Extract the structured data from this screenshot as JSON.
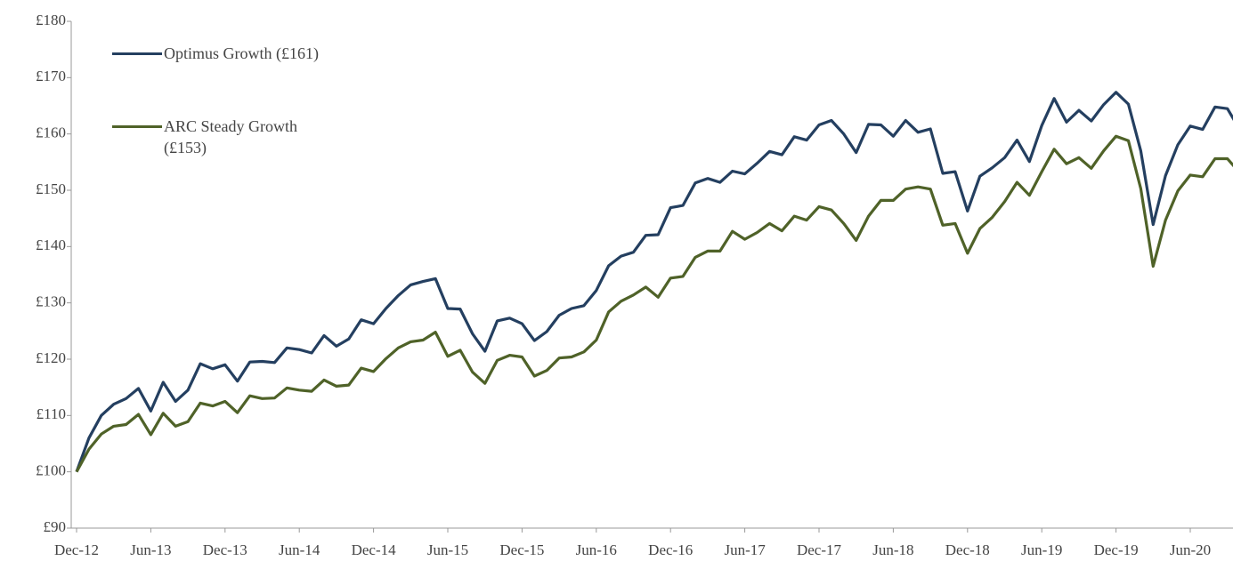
{
  "chart_data": {
    "type": "line",
    "categories": [
      "Dec-12",
      null,
      null,
      null,
      null,
      null,
      "Jun-13",
      null,
      null,
      null,
      null,
      null,
      "Dec-13",
      null,
      null,
      null,
      null,
      null,
      "Jun-14",
      null,
      null,
      null,
      null,
      null,
      "Dec-14",
      null,
      null,
      null,
      null,
      null,
      "Jun-15",
      null,
      null,
      null,
      null,
      null,
      "Dec-15",
      null,
      null,
      null,
      null,
      null,
      "Jun-16",
      null,
      null,
      null,
      null,
      null,
      "Dec-16",
      null,
      null,
      null,
      null,
      null,
      "Jun-17",
      null,
      null,
      null,
      null,
      null,
      "Dec-17",
      null,
      null,
      null,
      null,
      null,
      "Jun-18",
      null,
      null,
      null,
      null,
      null,
      "Dec-18",
      null,
      null,
      null,
      null,
      null,
      "Jun-19",
      null,
      null,
      null,
      null,
      null,
      "Dec-19",
      null,
      null,
      null,
      null,
      null,
      "Jun-20",
      null,
      null,
      null,
      null
    ],
    "series": [
      {
        "name": "Optimus Growth (£161)",
        "color": "#243f60",
        "values": [
          100,
          106,
          110,
          112,
          113,
          114.8,
          110.8,
          115.9,
          112.5,
          114.5,
          119.2,
          118.3,
          119,
          116.1,
          119.5,
          119.6,
          119.4,
          122,
          121.7,
          121.1,
          124.2,
          122.3,
          123.6,
          127,
          126.3,
          129,
          131.3,
          133.2,
          133.8,
          134.3,
          129,
          128.9,
          124.5,
          121.4,
          126.8,
          127.3,
          126.3,
          123.3,
          124.9,
          127.8,
          129,
          129.5,
          132.2,
          136.6,
          138.3,
          139,
          142,
          142.1,
          146.9,
          147.3,
          151.3,
          152.1,
          151.4,
          153.4,
          152.9,
          154.8,
          156.9,
          156.3,
          159.5,
          158.9,
          161.6,
          162.4,
          160,
          156.7,
          161.7,
          161.6,
          159.6,
          162.4,
          160.3,
          160.9,
          153,
          153.3,
          146.3,
          152.5,
          154,
          155.8,
          158.9,
          155.1,
          161.5,
          166.3,
          162.1,
          164.2,
          162.3,
          165.2,
          167.4,
          165.3,
          157,
          143.9,
          152.6,
          158.1,
          161.4,
          160.8,
          164.8,
          164.5,
          160.8
        ]
      },
      {
        "name": "ARC Steady Growth (£153)",
        "color": "#4f6228",
        "values": [
          100,
          104,
          106.7,
          108.1,
          108.4,
          110.2,
          106.6,
          110.4,
          108.1,
          108.9,
          112.2,
          111.7,
          112.5,
          110.5,
          113.5,
          113,
          113.1,
          114.9,
          114.5,
          114.3,
          116.3,
          115.2,
          115.4,
          118.4,
          117.8,
          120.1,
          122,
          123.1,
          123.4,
          124.8,
          120.5,
          121.6,
          117.7,
          115.7,
          119.8,
          120.7,
          120.4,
          117,
          118,
          120.2,
          120.4,
          121.3,
          123.4,
          128.4,
          130.3,
          131.4,
          132.8,
          131,
          134.4,
          134.7,
          138.1,
          139.2,
          139.2,
          142.7,
          141.3,
          142.5,
          144.1,
          142.8,
          145.4,
          144.7,
          147.1,
          146.5,
          144.1,
          141.1,
          145.4,
          148.2,
          148.2,
          150.2,
          150.6,
          150.2,
          143.8,
          144.1,
          138.8,
          143.2,
          145.2,
          148,
          151.4,
          149.1,
          153.3,
          157.3,
          154.7,
          155.8,
          153.9,
          157,
          159.6,
          158.8,
          150.3,
          136.5,
          144.7,
          149.9,
          152.7,
          152.4,
          155.6,
          155.6,
          153.1
        ]
      }
    ],
    "ylim": [
      90,
      180
    ],
    "yticks": [
      {
        "value": 90,
        "label": "£90"
      },
      {
        "value": 100,
        "label": "£100"
      },
      {
        "value": 110,
        "label": "£110"
      },
      {
        "value": 120,
        "label": "£120"
      },
      {
        "value": 130,
        "label": "£130"
      },
      {
        "value": 140,
        "label": "£140"
      },
      {
        "value": 150,
        "label": "£150"
      },
      {
        "value": 160,
        "label": "£160"
      },
      {
        "value": 170,
        "label": "£170"
      },
      {
        "value": 180,
        "label": "£180"
      }
    ],
    "legend": "upper left"
  }
}
